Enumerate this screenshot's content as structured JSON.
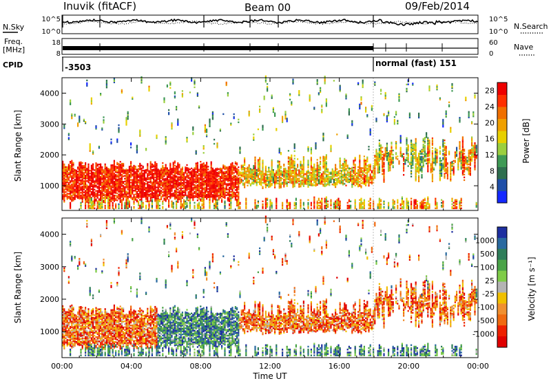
{
  "header": {
    "station": "Inuvik (fitACF)",
    "beam": "Beam 00",
    "date": "09/Feb/2014"
  },
  "top_panels": {
    "nsky_label": "N.Sky",
    "nsearch_label": "N.Search",
    "nsky_ticks": [
      "10^5",
      "10^0"
    ],
    "nsearch_ticks": [
      "10^5",
      "10^0"
    ],
    "freq_label_1": "Freq.",
    "freq_label_2": "[MHz]",
    "freq_ticks": [
      "18",
      "8"
    ],
    "nave_label": "Nave",
    "nave_ticks": [
      "60",
      "0"
    ],
    "cpid_label": "CPID",
    "cpid_left": "-3503",
    "cpid_right": "normal (fast) 151"
  },
  "colors": {
    "power_scale": [
      "#1428ff",
      "#1f4fa8",
      "#2f6f4f",
      "#3f9a55",
      "#9bcf3f",
      "#e8d000",
      "#f0a000",
      "#f07000",
      "#ff3000",
      "#ee0000"
    ],
    "velocity_scale": [
      "#1e2fa0",
      "#2a6aa0",
      "#2f7e5a",
      "#4aa348",
      "#7fcc48",
      "#b4b4b4",
      "#f0c000",
      "#f09030",
      "#f06a10",
      "#ee2000",
      "#e00000"
    ]
  },
  "chart_data": [
    {
      "type": "heatmap",
      "name": "power",
      "ylabel": "Slant Range [km]",
      "xlabel": "",
      "x_ticks": [
        "00:00",
        "04:00",
        "08:00",
        "12:00",
        "16:00",
        "20:00",
        "00:00"
      ],
      "y_ticks": [
        "1000",
        "2000",
        "3000",
        "4000"
      ],
      "xlim": [
        0,
        24
      ],
      "ylim": [
        200,
        4500
      ],
      "colorbar_label": "Power [dB]",
      "colorbar_ticks": [
        "28",
        "24",
        "20",
        "16",
        "12",
        "8",
        "4"
      ],
      "colorbar_range": [
        0,
        30
      ]
    },
    {
      "type": "heatmap",
      "name": "velocity",
      "ylabel": "Slant Range [km]",
      "xlabel": "Time UT",
      "x_ticks": [
        "00:00",
        "04:00",
        "08:00",
        "12:00",
        "16:00",
        "20:00",
        "00:00"
      ],
      "y_ticks": [
        "1000",
        "2000",
        "3000",
        "4000"
      ],
      "xlim": [
        0,
        24
      ],
      "ylim": [
        200,
        4500
      ],
      "colorbar_label": "Velocity [m s⁻¹]",
      "colorbar_ticks": [
        "1000",
        "500",
        "100",
        "25",
        "-25",
        "-100",
        "-500",
        "-1000"
      ]
    }
  ]
}
